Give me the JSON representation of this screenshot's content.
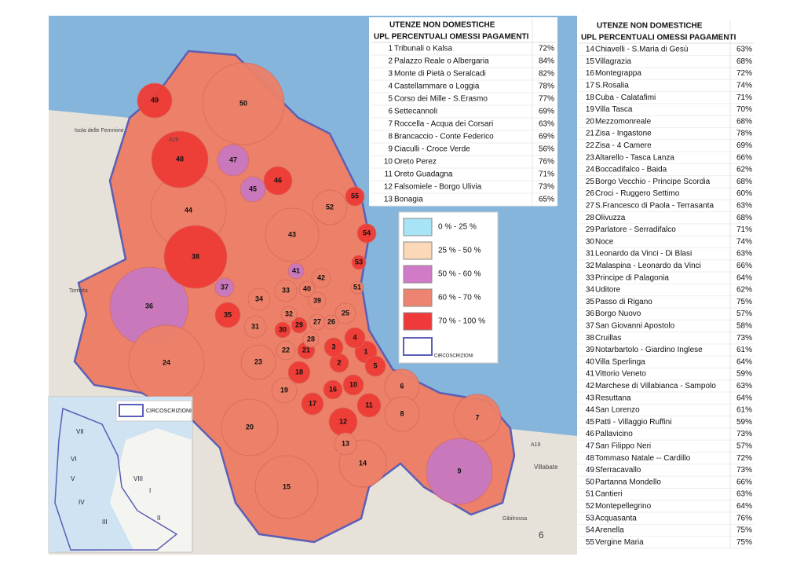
{
  "top_table": {
    "headers": [
      "UTENZE  NON  DOMESTICHE",
      "UPL PERCENTUALI OMESSI PAGAMENTI"
    ],
    "rows": [
      {
        "num": 1,
        "name": "Tribunali o Kalsa",
        "pct": "72%",
        "color": "#ef3b36"
      },
      {
        "num": 2,
        "name": "Palazzo Reale o Albergaria",
        "pct": "84%",
        "color": "#ef3b36"
      },
      {
        "num": 3,
        "name": "Monte di Pietà o Seralcadi",
        "pct": "82%",
        "color": "#ef3b36"
      },
      {
        "num": 4,
        "name": "Castellammare o Loggia",
        "pct": "78%",
        "color": "#ef3b36"
      },
      {
        "num": 5,
        "name": "Corso dei Mille - S.Erasmo",
        "pct": "77%",
        "color": "#ef3b36"
      },
      {
        "num": 6,
        "name": "Settecannoli",
        "pct": "69%",
        "color": "#ec8068"
      },
      {
        "num": 7,
        "name": "Roccella -  Acqua dei Corsari",
        "pct": "63%",
        "color": "#ec8068"
      },
      {
        "num": 8,
        "name": "Brancaccio -  Conte Federico",
        "pct": "69%",
        "color": "#ec8068"
      },
      {
        "num": 9,
        "name": "Ciaculli - Croce Verde",
        "pct": "56%",
        "color": "#c878c0"
      },
      {
        "num": 10,
        "name": "Oreto Perez",
        "pct": "76%",
        "color": "#ef3b36"
      },
      {
        "num": 11,
        "name": "Oreto Guadagna",
        "pct": "71%",
        "color": "#ef3b36"
      },
      {
        "num": 12,
        "name": "Falsomiele -  Borgo Ulivia",
        "pct": "73%",
        "color": "#ef3b36"
      },
      {
        "num": 13,
        "name": "Bonagia",
        "pct": "65%",
        "color": "#ec8068"
      }
    ]
  },
  "right_table": {
    "headers": [
      "UTENZE  NON  DOMESTICHE",
      "UPL PERCENTUALI OMESSI PAGAMENTI"
    ],
    "rows": [
      {
        "num": 14,
        "name": "Chiavelli - S.Maria di Gesù",
        "pct": "63%",
        "color": "#ec8068"
      },
      {
        "num": 15,
        "name": "Villagrazia",
        "pct": "68%",
        "color": "#ec8068"
      },
      {
        "num": 16,
        "name": "Montegrappa",
        "pct": "72%",
        "color": "#ef3b36"
      },
      {
        "num": 17,
        "name": "S.Rosalia",
        "pct": "74%",
        "color": "#ef3b36"
      },
      {
        "num": 18,
        "name": "Cuba - Calatafimi",
        "pct": "71%",
        "color": "#ef3b36"
      },
      {
        "num": 19,
        "name": "Villa Tasca",
        "pct": "70%",
        "color": "#ec8068"
      },
      {
        "num": 20,
        "name": "Mezzomonreale",
        "pct": "68%",
        "color": "#ec8068"
      },
      {
        "num": 21,
        "name": "Zisa - Ingastone",
        "pct": "78%",
        "color": "#ef3b36"
      },
      {
        "num": 22,
        "name": "Zisa - 4 Camere",
        "pct": "69%",
        "color": "#ec8068"
      },
      {
        "num": 23,
        "name": "Altarello - Tasca Lanza",
        "pct": "66%",
        "color": "#ec8068"
      },
      {
        "num": 24,
        "name": "Boccadifalco - Baida",
        "pct": "62%",
        "color": "#ec8068"
      },
      {
        "num": 25,
        "name": "Borgo Vecchio - Principe Scordia",
        "pct": "68%",
        "color": "#ec8068"
      },
      {
        "num": 26,
        "name": "Croci - Ruggero Settimo",
        "pct": "60%",
        "color": "#ec8068"
      },
      {
        "num": 27,
        "name": "S.Francesco di Paola - Terrasanta",
        "pct": "63%",
        "color": "#ec8068"
      },
      {
        "num": 28,
        "name": "Olivuzza",
        "pct": "68%",
        "color": "#ec8068"
      },
      {
        "num": 29,
        "name": "Parlatore - Serradifalco",
        "pct": "71%",
        "color": "#ef3b36"
      },
      {
        "num": 30,
        "name": "Noce",
        "pct": "74%",
        "color": "#ef3b36"
      },
      {
        "num": 31,
        "name": "Leonardo da Vinci - Di Blasi",
        "pct": "63%",
        "color": "#ec8068"
      },
      {
        "num": 32,
        "name": "Malaspina - Leonardo da Vinci",
        "pct": "66%",
        "color": "#ec8068"
      },
      {
        "num": 33,
        "name": "Principe di Palagonia",
        "pct": "64%",
        "color": "#ec8068"
      },
      {
        "num": 34,
        "name": "Uditore",
        "pct": "62%",
        "color": "#ec8068"
      },
      {
        "num": 35,
        "name": "Passo di Rigano",
        "pct": "75%",
        "color": "#ef3b36"
      },
      {
        "num": 36,
        "name": "Borgo Nuovo",
        "pct": "57%",
        "color": "#c878c0"
      },
      {
        "num": 37,
        "name": "San Giovanni Apostolo",
        "pct": "58%",
        "color": "#c878c0"
      },
      {
        "num": 38,
        "name": "Cruillas",
        "pct": "73%",
        "color": "#ef3b36"
      },
      {
        "num": 39,
        "name": "Notarbartolo - Giardino Inglese",
        "pct": "61%",
        "color": "#ec8068"
      },
      {
        "num": 40,
        "name": "Villa Sperlinga",
        "pct": "64%",
        "color": "#ec8068"
      },
      {
        "num": 41,
        "name": "Vittorio Veneto",
        "pct": "59%",
        "color": "#c878c0"
      },
      {
        "num": 42,
        "name": "Marchese di Villabianca - Sampolo",
        "pct": "63%",
        "color": "#ec8068"
      },
      {
        "num": 43,
        "name": "Resuttana",
        "pct": "64%",
        "color": "#ec8068"
      },
      {
        "num": 44,
        "name": "San Lorenzo",
        "pct": "61%",
        "color": "#ec8068"
      },
      {
        "num": 45,
        "name": "Patti - Villaggio Ruffini",
        "pct": "59%",
        "color": "#c878c0"
      },
      {
        "num": 46,
        "name": "Pallavicino",
        "pct": "73%",
        "color": "#ef3b36"
      },
      {
        "num": 47,
        "name": "San Filippo Neri",
        "pct": "57%",
        "color": "#c878c0"
      },
      {
        "num": 48,
        "name": "Tommaso Natale -- Cardillo",
        "pct": "72%",
        "color": "#ef3b36"
      },
      {
        "num": 49,
        "name": "Sferracavallo",
        "pct": "73%",
        "color": "#ef3b36"
      },
      {
        "num": 50,
        "name": "Partanna Mondello",
        "pct": "66%",
        "color": "#ec8068"
      },
      {
        "num": 51,
        "name": "Cantieri",
        "pct": "63%",
        "color": "#ec8068"
      },
      {
        "num": 52,
        "name": "Montepellegrino",
        "pct": "64%",
        "color": "#ec8068"
      },
      {
        "num": 53,
        "name": "Acquasanta",
        "pct": "76%",
        "color": "#ef3b36"
      },
      {
        "num": 54,
        "name": "Arenella",
        "pct": "75%",
        "color": "#ef3b36"
      },
      {
        "num": 55,
        "name": "Vergine Maria",
        "pct": "75%",
        "color": "#ef3b36"
      }
    ]
  },
  "legend": {
    "entries": [
      {
        "label": "0 % - 25 %",
        "color": "#a9e3f6"
      },
      {
        "label": "25 % - 50 %",
        "color": "#fbd9b8"
      },
      {
        "label": "50 % - 60 %",
        "color": "#d07ac8"
      },
      {
        "label": "60 % - 70 %",
        "color": "#ed8472"
      },
      {
        "label": "70 % - 100 %",
        "color": "#f0393a"
      }
    ],
    "border_label": "CIRCOSCRIZIONI"
  },
  "map": {
    "places": [
      "Isola delle Femmine",
      "Torretta",
      "A29",
      "A19",
      "Villabate",
      "Gibilrossa",
      "6"
    ],
    "inset": {
      "label": "CIRCOSCRIZIONI",
      "zones": [
        "VII",
        "VI",
        "V",
        "VIII",
        "I",
        "IV",
        "III",
        "II"
      ]
    }
  }
}
